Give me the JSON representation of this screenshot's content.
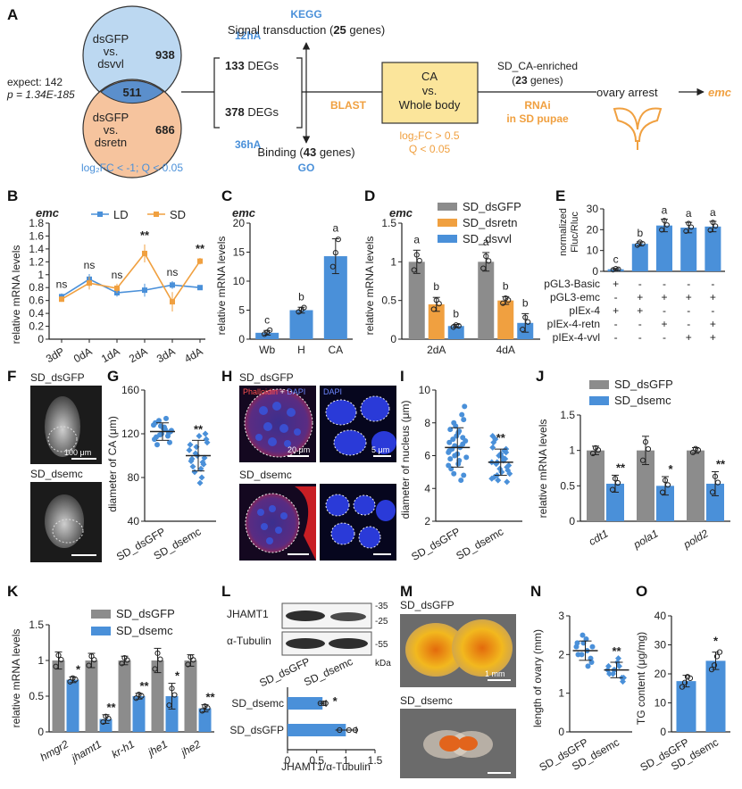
{
  "colors": {
    "blue": "#4a90d9",
    "orange": "#f0a040",
    "gray": "#8c8c8c",
    "ca_box": "#fbe59b",
    "venn_top": "#bcd8f1",
    "venn_bottom": "#f6c49e"
  },
  "panelA": {
    "label": "A",
    "venn_top": [
      "dsGFP",
      "vs.",
      "dsvvl"
    ],
    "venn_top_count": "938",
    "venn_overlap": "511",
    "venn_bottom": [
      "dsGFP",
      "vs.",
      "dsretn"
    ],
    "venn_bottom_count": "686",
    "expect": "expect: 142",
    "pvalue": "p = 1.34E-185",
    "threshold": "log₂FC < -1; Q < 0.05",
    "t12": "12hA",
    "degs12_n": "133",
    "degs_word": "DEGs",
    "degs36_n": "378",
    "t36": "36hA",
    "kegg": "KEGG",
    "signal": "Signal transduction (",
    "signal_n": "25",
    "genes_close": " genes)",
    "binding": "Binding (",
    "binding_n": "43",
    "go": "GO",
    "blast": "BLAST",
    "ca_box": [
      "CA",
      "vs.",
      "Whole body"
    ],
    "ca_threshold": [
      "log₂FC > 0.5",
      "Q < 0.05"
    ],
    "enriched": "SD_CA-enriched",
    "enriched_n": "23",
    "rnai": [
      "RNAi",
      "in SD pupae"
    ],
    "ovary": "ovary arrest",
    "emc": "emc"
  },
  "panelB": {
    "label": "B",
    "gene": "emc",
    "ylabel": "relative mRNA levels",
    "legend": [
      "LD",
      "SD"
    ],
    "sig": [
      "ns",
      "ns",
      "ns",
      "**",
      "ns",
      "**"
    ]
  },
  "panelC": {
    "label": "C",
    "gene": "emc",
    "ylabel": "relative mRNA levels",
    "letters": [
      "c",
      "b",
      "a"
    ]
  },
  "panelD": {
    "label": "D",
    "gene": "emc",
    "ylabel": "relative mRNA levels",
    "legend": [
      "SD_dsGFP",
      "SD_dsretn",
      "SD_dsvvl"
    ],
    "letters": [
      "a",
      "b",
      "b",
      "a",
      "b",
      "b"
    ]
  },
  "panelE": {
    "label": "E",
    "ylabel": [
      "normalized",
      "Fluc/Rluc"
    ],
    "letters": [
      "c",
      "b",
      "a",
      "a",
      "a"
    ],
    "rows": [
      {
        "name": "pGL3-Basic",
        "signs": [
          "+",
          "-",
          "-",
          "-",
          "-"
        ]
      },
      {
        "name": "pGL3-emc",
        "signs": [
          "-",
          "+",
          "+",
          "+",
          "+"
        ]
      },
      {
        "name": "pIEx-4",
        "signs": [
          "+",
          "+",
          "-",
          "-",
          "-"
        ]
      },
      {
        "name": "pIEx-4-retn",
        "signs": [
          "-",
          "-",
          "+",
          "-",
          "+"
        ]
      },
      {
        "name": "pIEx-4-vvl",
        "signs": [
          "-",
          "-",
          "-",
          "+",
          "+"
        ]
      }
    ]
  },
  "panelF": {
    "label": "F",
    "top": "SD_dsGFP",
    "bottom": "SD_dsemc",
    "scale": "100 μm"
  },
  "panelG": {
    "label": "G",
    "ylabel": "diameter of CA (μm)",
    "sig": "**"
  },
  "panelH": {
    "label": "H",
    "top": "SD_dsGFP",
    "bottom": "SD_dsemc",
    "stain1": "Phalloidin",
    "plus": " + ",
    "stain2": "DAPI",
    "stain3": "DAPI",
    "scale1": "20 μm",
    "scale2": "5 μm"
  },
  "panelI": {
    "label": "I",
    "ylabel": "diameter of nucleus (μm)",
    "sig": "**"
  },
  "panelJ": {
    "label": "J",
    "ylabel": "relative mRNA levels",
    "legend": [
      "SD_dsGFP",
      "SD_dsemc"
    ],
    "sig": [
      "**",
      "*",
      "**"
    ]
  },
  "panelK": {
    "label": "K",
    "ylabel": "relative mRNA levels",
    "legend": [
      "SD_dsGFP",
      "SD_dsemc"
    ],
    "sig": [
      "*",
      "**",
      "**",
      "*",
      "**"
    ]
  },
  "panelL": {
    "label": "L",
    "protein1": "JHAMT1",
    "protein2": "α-Tubulin",
    "kda": "kDa",
    "mw": [
      "-35",
      "-25",
      "-55"
    ],
    "xlabel": "JHAMT1/α-Tubulin",
    "sig": "*"
  },
  "panelM": {
    "label": "M",
    "top": "SD_dsGFP",
    "bottom": "SD_dsemc",
    "scale": "1 mm"
  },
  "panelN": {
    "label": "N",
    "ylabel": "length of ovary (mm)",
    "sig": "**"
  },
  "panelO": {
    "label": "O",
    "ylabel": "TG content (μg/mg)",
    "sig": "*"
  },
  "chart_data": [
    {
      "id": "B",
      "type": "line",
      "x": [
        "3dP",
        "0dA",
        "1dA",
        "2dA",
        "3dA",
        "4dA"
      ],
      "ylim": [
        0,
        1.8
      ],
      "yticks": [
        0,
        0.2,
        0.4,
        0.6,
        0.8,
        1.0,
        1.2,
        1.4,
        1.6,
        1.8
      ],
      "series": [
        {
          "name": "LD",
          "values": [
            0.66,
            0.93,
            0.72,
            0.76,
            0.84,
            0.8
          ],
          "err": [
            0.05,
            0.08,
            0.06,
            0.1,
            0.06,
            0.03
          ]
        },
        {
          "name": "SD",
          "values": [
            0.62,
            0.87,
            0.79,
            1.33,
            0.58,
            1.21
          ],
          "err": [
            0.04,
            0.1,
            0.07,
            0.14,
            0.15,
            0.05
          ]
        }
      ]
    },
    {
      "id": "C",
      "type": "bar",
      "categories": [
        "Wb",
        "H",
        "CA"
      ],
      "values": [
        1.1,
        5.0,
        14.3
      ],
      "err": [
        0.4,
        0.5,
        3.0
      ],
      "ylim": [
        0,
        20
      ],
      "yticks": [
        0,
        5,
        10,
        15,
        20
      ]
    },
    {
      "id": "D",
      "type": "bar",
      "categories": [
        "2dA",
        "4dA"
      ],
      "ylim": [
        0,
        1.5
      ],
      "yticks": [
        0,
        0.5,
        1.0,
        1.5
      ],
      "series": [
        {
          "name": "SD_dsGFP",
          "values": [
            1.0,
            1.0
          ],
          "err": [
            0.15,
            0.12
          ]
        },
        {
          "name": "SD_dsretn",
          "values": [
            0.45,
            0.5
          ],
          "err": [
            0.09,
            0.05
          ]
        },
        {
          "name": "SD_dsvvl",
          "values": [
            0.17,
            0.21
          ],
          "err": [
            0.02,
            0.12
          ]
        }
      ]
    },
    {
      "id": "E",
      "type": "bar",
      "categories": [
        "1",
        "2",
        "3",
        "4",
        "5"
      ],
      "values": [
        1.0,
        13.2,
        22.0,
        21.0,
        21.5
      ],
      "err": [
        0.4,
        1.0,
        3.0,
        2.5,
        2.5
      ],
      "ylim": [
        0,
        30
      ],
      "yticks": [
        0,
        10,
        20,
        30
      ]
    },
    {
      "id": "G",
      "type": "scatter",
      "categories": [
        "SD_dsGFP",
        "SD_dsemc"
      ],
      "means": [
        122,
        100
      ],
      "sd": [
        8,
        14
      ],
      "ylim": [
        40,
        160
      ],
      "yticks": [
        40,
        80,
        120,
        160
      ],
      "points": [
        [
          128,
          118,
          125,
          132,
          115,
          121,
          126,
          119,
          130,
          112,
          124,
          127,
          117,
          122,
          134,
          120,
          110,
          123
        ],
        [
          105,
          92,
          118,
          85,
          110,
          98,
          75,
          102,
          95,
          120,
          88,
          108,
          97,
          115,
          80,
          100,
          90,
          112,
          94
        ]
      ]
    },
    {
      "id": "I",
      "type": "scatter",
      "categories": [
        "SD_dsGFP",
        "SD_dsemc"
      ],
      "means": [
        6.5,
        5.6
      ],
      "sd": [
        1.2,
        0.8
      ],
      "ylim": [
        2,
        10
      ],
      "yticks": [
        2,
        4,
        6,
        8,
        10
      ],
      "points": [
        [
          6.2,
          7.1,
          5.5,
          8.0,
          6.8,
          4.8,
          7.5,
          6.0,
          5.8,
          9.0,
          6.5,
          7.8,
          5.2,
          6.9,
          4.5,
          7.2,
          6.4,
          5.9,
          8.5,
          6.1,
          7.0,
          5.4,
          6.7,
          7.4,
          4.9,
          6.3,
          8.2,
          5.7,
          6.6,
          7.6
        ],
        [
          5.6,
          6.2,
          5.0,
          4.8,
          6.5,
          5.3,
          5.9,
          4.5,
          6.8,
          5.1,
          5.7,
          6.0,
          4.7,
          5.4,
          6.3,
          5.2,
          7.0,
          4.9,
          5.8,
          6.1,
          5.5,
          4.6,
          6.4,
          5.0,
          5.6,
          7.2,
          4.4
        ]
      ]
    },
    {
      "id": "J",
      "type": "bar",
      "categories": [
        "cdt1",
        "pola1",
        "pold2"
      ],
      "ylim": [
        0,
        1.5
      ],
      "yticks": [
        0,
        0.5,
        1.0,
        1.5
      ],
      "series": [
        {
          "name": "SD_dsGFP",
          "values": [
            1.0,
            1.0,
            1.0
          ],
          "err": [
            0.06,
            0.2,
            0.04
          ]
        },
        {
          "name": "SD_dsemc",
          "values": [
            0.53,
            0.5,
            0.53
          ],
          "err": [
            0.12,
            0.13,
            0.17
          ]
        }
      ]
    },
    {
      "id": "K",
      "type": "bar",
      "categories": [
        "hmgr2",
        "jhamt1",
        "kr-h1",
        "jhe1",
        "jhe2"
      ],
      "ylim": [
        0,
        1.5
      ],
      "yticks": [
        0,
        0.5,
        1.0,
        1.5
      ],
      "series": [
        {
          "name": "SD_dsGFP",
          "values": [
            1.0,
            1.0,
            1.0,
            1.0,
            1.0
          ],
          "err": [
            0.12,
            0.1,
            0.06,
            0.17,
            0.08
          ]
        },
        {
          "name": "SD_dsemc",
          "values": [
            0.73,
            0.18,
            0.5,
            0.5,
            0.33
          ],
          "err": [
            0.04,
            0.06,
            0.04,
            0.18,
            0.05
          ]
        }
      ]
    },
    {
      "id": "L",
      "type": "bar",
      "orientation": "horizontal",
      "categories": [
        "SD_dsemc",
        "SD_dsGFP"
      ],
      "values": [
        0.6,
        1.0
      ],
      "err": [
        0.06,
        0.18
      ],
      "xlim": [
        0,
        1.5
      ],
      "xticks": [
        0,
        0.5,
        1.0,
        1.5
      ]
    },
    {
      "id": "N",
      "type": "scatter",
      "categories": [
        "SD_dsGFP",
        "SD_dsemc"
      ],
      "means": [
        2.1,
        1.6
      ],
      "sd": [
        0.25,
        0.2
      ],
      "ylim": [
        0,
        3
      ],
      "yticks": [
        0,
        1,
        2,
        3
      ],
      "points": [
        [
          2.2,
          1.9,
          2.4,
          2.0,
          2.3,
          1.8,
          2.1,
          2.5,
          2.0,
          2.2,
          1.7,
          2.3
        ],
        [
          1.6,
          1.4,
          1.8,
          1.5,
          1.7,
          1.3,
          1.9,
          1.6,
          1.5,
          1.4,
          1.7,
          1.6
        ]
      ]
    },
    {
      "id": "O",
      "type": "bar",
      "categories": [
        "SD_dsGFP",
        "SD_dsemc"
      ],
      "values": [
        17.5,
        24.5
      ],
      "err": [
        2.0,
        3.0
      ],
      "ylim": [
        0,
        40
      ],
      "yticks": [
        0,
        10,
        20,
        30,
        40
      ],
      "points": [
        [
          15.5,
          17,
          19,
          18.5
        ],
        [
          21.5,
          23,
          26,
          27.5
        ]
      ]
    }
  ]
}
